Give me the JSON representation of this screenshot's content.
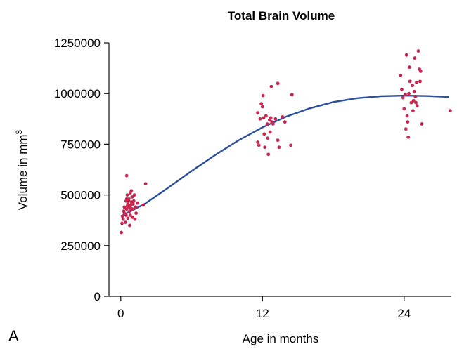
{
  "panel_label": "A",
  "chart_data": {
    "type": "scatter",
    "title": "Total Brain Volume",
    "xlabel": "Age in months",
    "ylabel": "Volume in mm",
    "ylabel_sup": "3",
    "xlim": [
      -1,
      28
    ],
    "ylim": [
      0,
      1250000
    ],
    "xticks": [
      0,
      12,
      24
    ],
    "xtick_labels": [
      "0",
      "12",
      "24"
    ],
    "yticks": [
      0,
      250000,
      500000,
      750000,
      1000000,
      1250000
    ],
    "ytick_labels": [
      "0",
      "250000",
      "500000",
      "750000",
      "1000000",
      "1250000"
    ],
    "grid": false,
    "marker_color": "#c8264f",
    "line_color": "#2b4f9e",
    "series": [
      {
        "kind": "points",
        "points": [
          [
            0.05,
            315000
          ],
          [
            0.1,
            360000
          ],
          [
            0.2,
            380000
          ],
          [
            0.15,
            395000
          ],
          [
            0.3,
            410000
          ],
          [
            0.25,
            420000
          ],
          [
            0.4,
            365000
          ],
          [
            0.45,
            400000
          ],
          [
            0.5,
            430000
          ],
          [
            0.55,
            445000
          ],
          [
            0.6,
            455000
          ],
          [
            0.5,
            480000
          ],
          [
            0.55,
            500000
          ],
          [
            0.5,
            595000
          ],
          [
            0.65,
            470000
          ],
          [
            0.7,
            440000
          ],
          [
            0.75,
            420000
          ],
          [
            0.8,
            400000
          ],
          [
            0.85,
            450000
          ],
          [
            0.9,
            465000
          ],
          [
            0.95,
            490000
          ],
          [
            0.9,
            520000
          ],
          [
            1.0,
            430000
          ],
          [
            1.05,
            455000
          ],
          [
            1.1,
            470000
          ],
          [
            1.15,
            500000
          ],
          [
            1.2,
            380000
          ],
          [
            1.0,
            390000
          ],
          [
            0.6,
            385000
          ],
          [
            0.75,
            350000
          ],
          [
            1.3,
            410000
          ],
          [
            0.8,
            510000
          ],
          [
            0.7,
            480000
          ],
          [
            0.85,
            435000
          ],
          [
            0.3,
            440000
          ],
          [
            0.45,
            470000
          ],
          [
            1.25,
            440000
          ],
          [
            1.4,
            460000
          ],
          [
            1.9,
            450000
          ],
          [
            2.1,
            555000
          ]
        ]
      },
      {
        "kind": "points",
        "points": [
          [
            11.6,
            905000
          ],
          [
            11.6,
            760000
          ],
          [
            11.7,
            745000
          ],
          [
            11.8,
            875000
          ],
          [
            11.9,
            950000
          ],
          [
            12.0,
            935000
          ],
          [
            12.05,
            990000
          ],
          [
            12.1,
            880000
          ],
          [
            12.15,
            800000
          ],
          [
            12.2,
            735000
          ],
          [
            12.3,
            890000
          ],
          [
            12.4,
            850000
          ],
          [
            12.45,
            780000
          ],
          [
            12.5,
            700000
          ],
          [
            12.6,
            870000
          ],
          [
            12.65,
            810000
          ],
          [
            12.7,
            880000
          ],
          [
            12.75,
            1035000
          ],
          [
            12.8,
            860000
          ],
          [
            13.1,
            875000
          ],
          [
            13.3,
            1050000
          ],
          [
            13.3,
            770000
          ],
          [
            13.4,
            735000
          ],
          [
            13.7,
            885000
          ],
          [
            13.9,
            860000
          ],
          [
            14.5,
            995000
          ],
          [
            14.4,
            745000
          ],
          [
            12.9,
            850000
          ]
        ]
      },
      {
        "kind": "points",
        "points": [
          [
            23.7,
            1090000
          ],
          [
            23.8,
            1020000
          ],
          [
            23.9,
            980000
          ],
          [
            24.0,
            925000
          ],
          [
            24.1,
            995000
          ],
          [
            24.2,
            1190000
          ],
          [
            24.25,
            890000
          ],
          [
            24.3,
            860000
          ],
          [
            24.35,
            785000
          ],
          [
            24.4,
            1000000
          ],
          [
            24.5,
            1060000
          ],
          [
            24.6,
            955000
          ],
          [
            24.7,
            1040000
          ],
          [
            24.75,
            915000
          ],
          [
            24.8,
            965000
          ],
          [
            24.85,
            1010000
          ],
          [
            24.9,
            1175000
          ],
          [
            24.95,
            985000
          ],
          [
            25.0,
            955000
          ],
          [
            25.05,
            1055000
          ],
          [
            25.1,
            940000
          ],
          [
            25.2,
            1210000
          ],
          [
            25.3,
            1120000
          ],
          [
            25.35,
            1060000
          ],
          [
            25.4,
            1110000
          ],
          [
            25.5,
            850000
          ],
          [
            24.15,
            825000
          ],
          [
            24.45,
            1130000
          ],
          [
            27.9,
            915000
          ]
        ]
      },
      {
        "kind": "fit",
        "points": [
          [
            0,
            395000
          ],
          [
            2,
            455000
          ],
          [
            4,
            535000
          ],
          [
            6,
            618000
          ],
          [
            8,
            697000
          ],
          [
            10,
            770000
          ],
          [
            12,
            833000
          ],
          [
            14,
            886000
          ],
          [
            16,
            927000
          ],
          [
            18,
            958000
          ],
          [
            20,
            977000
          ],
          [
            22,
            987000
          ],
          [
            24,
            990000
          ],
          [
            26,
            988000
          ],
          [
            27.8,
            983000
          ]
        ]
      }
    ]
  }
}
